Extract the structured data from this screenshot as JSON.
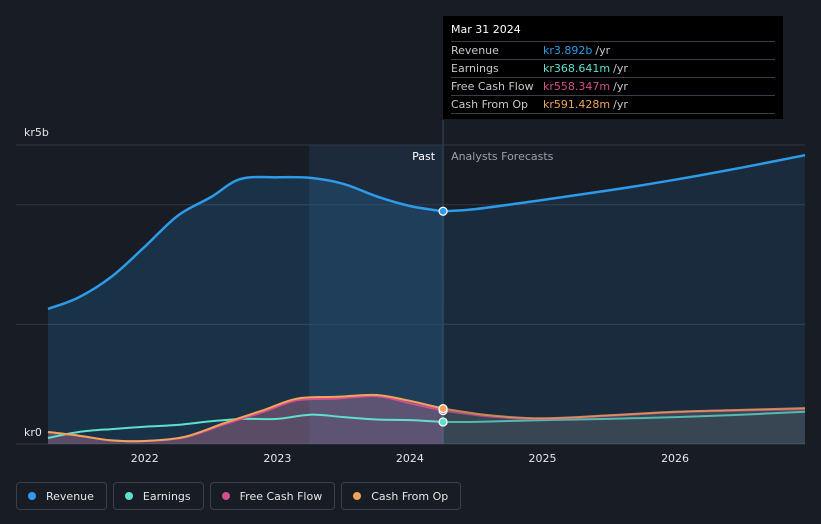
{
  "tooltip": {
    "date": "Mar 31 2024",
    "rows": [
      {
        "label": "Revenue",
        "value": "kr3.892b",
        "unit": "/yr"
      },
      {
        "label": "Earnings",
        "value": "kr368.641m",
        "unit": "/yr"
      },
      {
        "label": "Free Cash Flow",
        "value": "kr558.347m",
        "unit": "/yr"
      },
      {
        "label": "Cash From Op",
        "value": "kr591.428m",
        "unit": "/yr"
      }
    ]
  },
  "colors": {
    "revenue": "#2d9be8",
    "earnings": "#5ee0cc",
    "free_cash_flow": "#d24f8f",
    "cash_from_op": "#f0a35a",
    "background": "#171c25"
  },
  "legend": [
    {
      "label": "Revenue",
      "color": "#2d9be8"
    },
    {
      "label": "Earnings",
      "color": "#5ee0cc"
    },
    {
      "label": "Free Cash Flow",
      "color": "#d24f8f"
    },
    {
      "label": "Cash From Op",
      "color": "#f0a35a"
    }
  ],
  "chart_data": {
    "type": "line",
    "y_top_label": "kr5b",
    "y_bottom_label": "kr0",
    "ylim": [
      0,
      5000
    ],
    "xlim": [
      2021.27,
      2026.98
    ],
    "past_label": "Past",
    "forecast_label": "Analysts Forecasts",
    "divider_x": 2024.25,
    "past_band_start": 2023.24,
    "x_ticks": [
      {
        "value": 2022,
        "label": "2022"
      },
      {
        "value": 2023,
        "label": "2023"
      },
      {
        "value": 2024,
        "label": "2024"
      },
      {
        "value": 2025,
        "label": "2025"
      },
      {
        "value": 2026,
        "label": "2026"
      }
    ],
    "gridlines_y": [
      0,
      2000,
      4000,
      5000
    ],
    "series": [
      {
        "name": "Revenue",
        "color": "#2d9be8",
        "past": [
          [
            2021.27,
            2260
          ],
          [
            2021.5,
            2450
          ],
          [
            2021.75,
            2800
          ],
          [
            2022.0,
            3300
          ],
          [
            2022.25,
            3820
          ],
          [
            2022.5,
            4130
          ],
          [
            2022.72,
            4430
          ],
          [
            2023.0,
            4460
          ],
          [
            2023.25,
            4450
          ],
          [
            2023.5,
            4350
          ],
          [
            2023.75,
            4140
          ],
          [
            2024.0,
            3980
          ],
          [
            2024.25,
            3892
          ]
        ],
        "forecast": [
          [
            2024.25,
            3892
          ],
          [
            2024.5,
            3930
          ],
          [
            2025.0,
            4080
          ],
          [
            2025.5,
            4240
          ],
          [
            2026.0,
            4420
          ],
          [
            2026.5,
            4620
          ],
          [
            2026.98,
            4830
          ]
        ]
      },
      {
        "name": "Earnings",
        "color": "#5ee0cc",
        "past": [
          [
            2021.27,
            100
          ],
          [
            2021.5,
            200
          ],
          [
            2021.75,
            250
          ],
          [
            2022.0,
            290
          ],
          [
            2022.25,
            320
          ],
          [
            2022.5,
            380
          ],
          [
            2022.75,
            420
          ],
          [
            2023.0,
            420
          ],
          [
            2023.25,
            490
          ],
          [
            2023.5,
            450
          ],
          [
            2023.75,
            410
          ],
          [
            2024.0,
            400
          ],
          [
            2024.25,
            368.641
          ]
        ],
        "forecast": [
          [
            2024.25,
            368.641
          ],
          [
            2024.5,
            370
          ],
          [
            2025.0,
            400
          ],
          [
            2025.5,
            420
          ],
          [
            2026.0,
            450
          ],
          [
            2026.5,
            490
          ],
          [
            2026.98,
            540
          ]
        ]
      },
      {
        "name": "Free Cash Flow",
        "color": "#d24f8f",
        "past": [
          [
            2021.27,
            200
          ],
          [
            2021.5,
            140
          ],
          [
            2021.75,
            60
          ],
          [
            2022.0,
            50
          ],
          [
            2022.3,
            110
          ],
          [
            2022.6,
            330
          ],
          [
            2022.9,
            540
          ],
          [
            2023.15,
            730
          ],
          [
            2023.45,
            760
          ],
          [
            2023.75,
            800
          ],
          [
            2024.0,
            680
          ],
          [
            2024.25,
            558.347
          ]
        ],
        "forecast": [
          [
            2024.25,
            558.347
          ],
          [
            2024.6,
            460
          ],
          [
            2025.0,
            420
          ],
          [
            2025.5,
            470
          ],
          [
            2026.0,
            530
          ],
          [
            2026.5,
            560
          ],
          [
            2026.98,
            580
          ]
        ]
      },
      {
        "name": "Cash From Op",
        "color": "#f0a35a",
        "past": [
          [
            2021.27,
            200
          ],
          [
            2021.5,
            140
          ],
          [
            2021.75,
            60
          ],
          [
            2022.0,
            50
          ],
          [
            2022.3,
            120
          ],
          [
            2022.6,
            350
          ],
          [
            2022.9,
            570
          ],
          [
            2023.15,
            760
          ],
          [
            2023.45,
            790
          ],
          [
            2023.75,
            820
          ],
          [
            2024.0,
            720
          ],
          [
            2024.25,
            591.428
          ]
        ],
        "forecast": [
          [
            2024.25,
            591.428
          ],
          [
            2024.6,
            480
          ],
          [
            2025.0,
            430
          ],
          [
            2025.5,
            480
          ],
          [
            2026.0,
            540
          ],
          [
            2026.5,
            570
          ],
          [
            2026.98,
            600
          ]
        ]
      }
    ]
  }
}
